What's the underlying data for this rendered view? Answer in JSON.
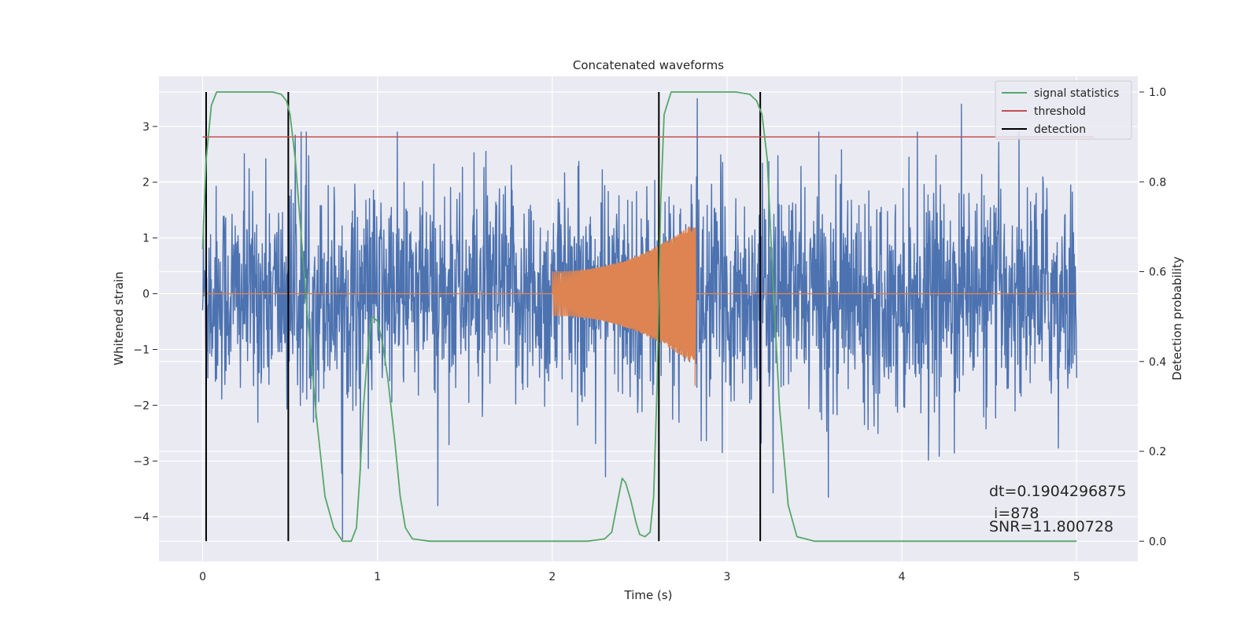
{
  "chart_data": {
    "type": "line",
    "title": "Concatenated waveforms",
    "xlabel": "Time (s)",
    "ylabel": "Whitened strain",
    "y2label": "Detection probability",
    "xlim": [
      -0.25,
      5.35
    ],
    "ylim": [
      -4.8,
      3.9
    ],
    "y2lim": [
      -0.045,
      1.035
    ],
    "x_ticks": [
      0,
      1,
      2,
      3,
      4,
      5
    ],
    "y_ticks": [
      -4,
      -3,
      -2,
      -1,
      0,
      1,
      2,
      3
    ],
    "y2_ticks": [
      0.0,
      0.2,
      0.4,
      0.6,
      0.8,
      1.0
    ],
    "x_tick_labels": [
      "0",
      "1",
      "2",
      "3",
      "4",
      "5"
    ],
    "y_tick_labels": [
      "−4",
      "−3",
      "−2",
      "−1",
      "0",
      "1",
      "2",
      "3"
    ],
    "y2_tick_labels": [
      "0.0",
      "0.2",
      "0.4",
      "0.6",
      "0.8",
      "1.0"
    ],
    "grid": true,
    "legend_position": "top-right",
    "colors": {
      "noise": "#4c72b0",
      "injected_signal": "#dd8452",
      "signal_statistics": "#55a868",
      "threshold": "#c44e52",
      "detection": "#000000",
      "background": "#eaeaf2",
      "grid": "#ffffff"
    },
    "series": [
      {
        "name": "signal statistics",
        "axis": "right",
        "x": [
          0,
          0.02,
          0.05,
          0.08,
          0.12,
          0.2,
          0.3,
          0.4,
          0.45,
          0.48,
          0.5,
          0.53,
          0.56,
          0.6,
          0.65,
          0.7,
          0.75,
          0.8,
          0.85,
          0.88,
          0.9,
          0.92,
          0.95,
          0.97,
          1.0,
          1.03,
          1.06,
          1.1,
          1.13,
          1.16,
          1.2,
          1.3,
          1.6,
          2.0,
          2.2,
          2.3,
          2.34,
          2.37,
          2.4,
          2.42,
          2.45,
          2.48,
          2.5,
          2.53,
          2.56,
          2.58,
          2.6,
          2.62,
          2.64,
          2.68,
          2.75,
          2.9,
          3.05,
          3.13,
          3.17,
          3.2,
          3.23,
          3.26,
          3.3,
          3.35,
          3.4,
          3.5,
          4.0,
          4.5,
          5.0
        ],
        "y": [
          0.65,
          0.85,
          0.97,
          1.0,
          1.0,
          1.0,
          1.0,
          1.0,
          0.995,
          0.98,
          0.95,
          0.85,
          0.7,
          0.5,
          0.28,
          0.1,
          0.03,
          0.0,
          0.0,
          0.03,
          0.15,
          0.3,
          0.45,
          0.5,
          0.49,
          0.44,
          0.36,
          0.22,
          0.1,
          0.03,
          0.005,
          0.0,
          0.0,
          0.0,
          0.0,
          0.005,
          0.02,
          0.08,
          0.14,
          0.13,
          0.09,
          0.04,
          0.015,
          0.01,
          0.02,
          0.1,
          0.35,
          0.75,
          0.95,
          1.0,
          1.0,
          1.0,
          1.0,
          0.995,
          0.98,
          0.95,
          0.85,
          0.6,
          0.3,
          0.08,
          0.01,
          0.0,
          0.0,
          0.0,
          0.0
        ]
      },
      {
        "name": "threshold",
        "axis": "right",
        "x": [
          0,
          5.1
        ],
        "y": [
          0.9,
          0.9
        ]
      },
      {
        "name": "detection",
        "axis": "right",
        "type": "vlines",
        "x": [
          0.02,
          0.49,
          2.61,
          3.19
        ],
        "y_range": [
          0.0,
          1.0
        ]
      },
      {
        "name": "",
        "axis": "left",
        "type": "noise",
        "x_range": [
          0,
          5
        ],
        "y_extent": [
          -4.4,
          3.5
        ],
        "note_peaks": [
          [
            0.8,
            -4.4
          ],
          [
            2.83,
            3.5
          ],
          [
            3.58,
            -3.65
          ],
          [
            4.34,
            3.4
          ]
        ]
      },
      {
        "name": "",
        "axis": "left",
        "type": "chirp",
        "x_range": [
          2.0,
          2.82
        ],
        "amplitude_start": 0.4,
        "amplitude_end": 1.3,
        "min_value": -1.65
      }
    ],
    "legend": [
      "signal statistics",
      "threshold",
      "detection"
    ],
    "annotations": [
      "dt=0.1904296875",
      " i=878",
      "SNR=11.800728"
    ]
  }
}
